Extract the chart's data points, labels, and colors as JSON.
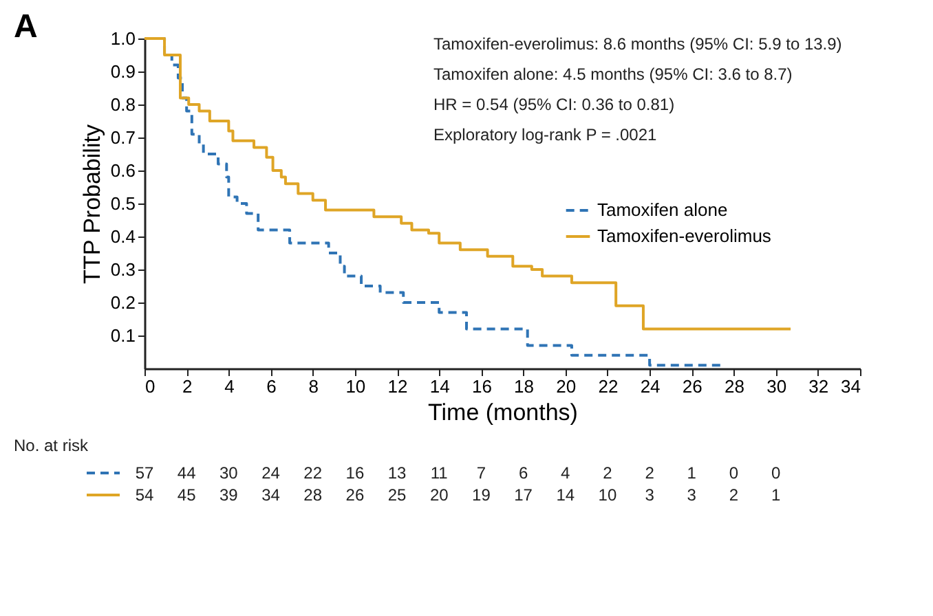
{
  "chart_data": {
    "type": "step",
    "title": "A",
    "xlabel": "Time (months)",
    "ylabel": "TTP Probability",
    "xlim": [
      0,
      34
    ],
    "xticks": [
      0,
      2,
      4,
      6,
      8,
      10,
      12,
      14,
      16,
      18,
      20,
      22,
      24,
      26,
      28,
      30,
      32,
      34
    ],
    "ylim": [
      0,
      1.0
    ],
    "yticks": [
      0.1,
      0.2,
      0.3,
      0.4,
      0.5,
      0.6,
      0.7,
      0.8,
      0.9,
      {
        "value": 1.0,
        "label": "1.0"
      }
    ],
    "grid": false,
    "legend": "right",
    "marker": "none",
    "series": [
      {
        "name": "Tamoxifen alone",
        "color": "#2f74b5",
        "line_style": "dashed",
        "x": [
          0,
          0.95,
          1.3,
          1.6,
          1.8,
          2.0,
          2.25,
          2.6,
          2.8,
          3.5,
          3.9,
          4.0,
          4.4,
          4.85,
          5.4,
          6.9,
          8.75,
          9.3,
          9.5,
          10.3,
          11.2,
          12.3,
          14.0,
          15.3,
          18.2,
          20.3,
          24.0,
          27.4
        ],
        "values": [
          1.0,
          0.95,
          0.92,
          0.88,
          0.82,
          0.78,
          0.71,
          0.68,
          0.65,
          0.62,
          0.58,
          0.52,
          0.5,
          0.47,
          0.42,
          0.38,
          0.35,
          0.31,
          0.28,
          0.25,
          0.23,
          0.2,
          0.17,
          0.12,
          0.07,
          0.04,
          0.01,
          0.01
        ]
      },
      {
        "name": "Tamoxifen-everolimus",
        "color": "#dfa526",
        "line_style": "solid",
        "x": [
          0,
          0.95,
          1.7,
          2.1,
          2.6,
          3.1,
          4.0,
          4.2,
          5.2,
          5.8,
          6.1,
          6.5,
          6.7,
          7.3,
          8.0,
          8.6,
          10.9,
          12.2,
          12.7,
          13.5,
          14.0,
          15.0,
          16.3,
          17.5,
          18.4,
          18.9,
          20.3,
          22.4,
          23.7,
          30.7
        ],
        "values": [
          1.0,
          0.95,
          0.82,
          0.8,
          0.78,
          0.75,
          0.72,
          0.69,
          0.67,
          0.64,
          0.6,
          0.58,
          0.56,
          0.53,
          0.51,
          0.48,
          0.46,
          0.44,
          0.42,
          0.41,
          0.38,
          0.36,
          0.34,
          0.31,
          0.3,
          0.28,
          0.26,
          0.19,
          0.12,
          0.12
        ]
      }
    ],
    "annotations": [
      "Tamoxifen-everolimus: 8.6 months (95% CI: 5.9 to 13.9)",
      "Tamoxifen alone: 4.5 months (95% CI: 3.6 to 8.7)",
      "HR = 0.54 (95% CI: 0.36 to 0.81)",
      "Exploratory log-rank P = .0021",
      "No. at risk",
      "57 44 30 24 22 16 13 11 7 6 4 2 2 1 0 0",
      "54 45 39 34 28 26 25 20 19 17 14 10 3 3 2 1"
    ]
  }
}
